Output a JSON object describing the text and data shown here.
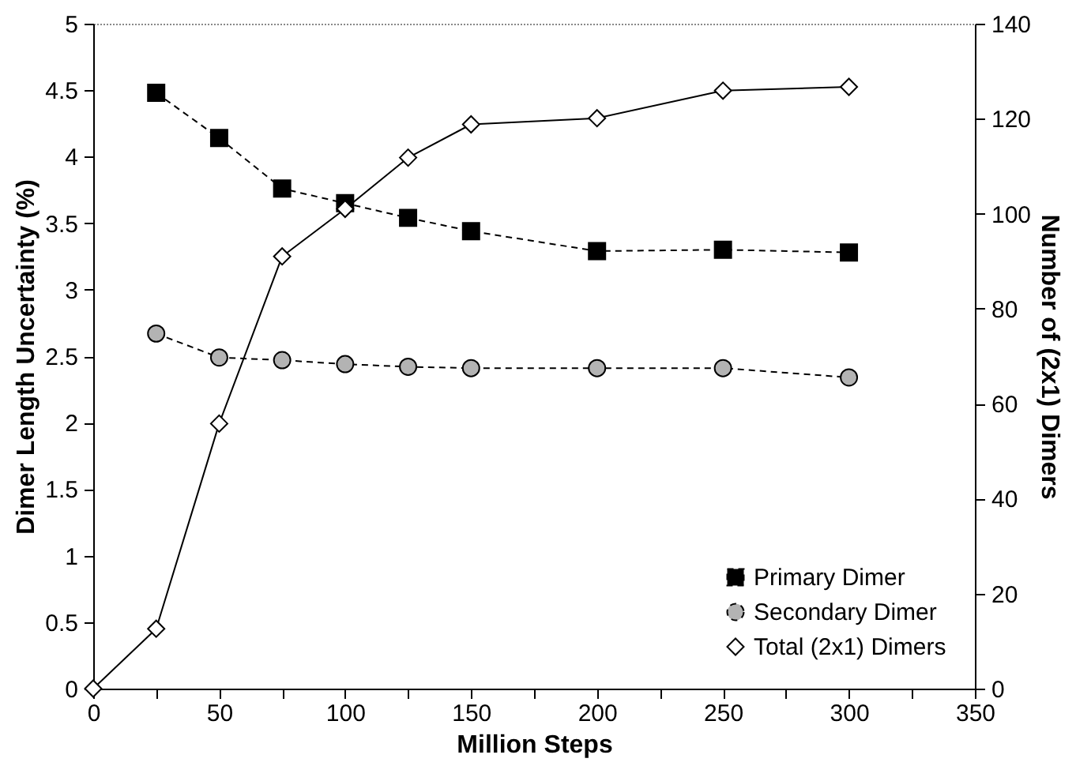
{
  "chart_data": {
    "type": "line",
    "xlabel": "Million Steps",
    "ylabel": "Dimer Length Uncertainty (%)",
    "y2label": "Number of (2x1) Dimers",
    "xlim": [
      0,
      350
    ],
    "xticks": [
      0,
      {
        "value": 25,
        "label": null
      },
      50,
      {
        "value": 75,
        "label": null
      },
      100,
      {
        "value": 125,
        "label": null
      },
      150,
      {
        "value": 175,
        "label": null
      },
      200,
      {
        "value": 225,
        "label": null
      },
      250,
      {
        "value": 275,
        "label": null
      },
      300,
      {
        "value": 325,
        "label": null
      },
      350
    ],
    "ylim": [
      0,
      5
    ],
    "yticks": [
      0,
      0.5,
      1,
      1.5,
      2,
      2.5,
      3,
      3.5,
      4,
      4.5,
      5
    ],
    "y2lim": [
      0,
      140
    ],
    "y2ticks": [
      0,
      20,
      40,
      60,
      80,
      100,
      120,
      140
    ],
    "grid": false,
    "legend": "bottom right",
    "series": [
      {
        "name": "Primary Dimer",
        "color": "#000000",
        "marker": "square",
        "line_style": "dashed",
        "x": [
          25,
          50,
          75,
          100,
          125,
          150,
          200,
          250,
          300
        ],
        "values": [
          4.48,
          4.14,
          3.76,
          3.65,
          3.54,
          3.44,
          3.29,
          3.3,
          3.28
        ]
      },
      {
        "name": "Secondary Dimer",
        "color": "#b3b3b3",
        "marker": "circle",
        "line_style": "dashed",
        "x": [
          25,
          50,
          75,
          100,
          125,
          150,
          200,
          250,
          300
        ],
        "values": [
          2.67,
          2.49,
          2.47,
          2.44,
          2.42,
          2.41,
          2.41,
          2.41,
          2.34
        ]
      },
      {
        "name": "Total (2x1) Dimers",
        "color": "#ffffff",
        "marker": "diamond",
        "line_style": "solid",
        "axis": "y2",
        "x": [
          0,
          25,
          50,
          75,
          100,
          125,
          150,
          200,
          250,
          300
        ],
        "values": [
          0,
          12.6,
          55.8,
          91,
          101,
          111.8,
          118.8,
          120.1,
          125.9,
          126.7
        ]
      }
    ]
  }
}
